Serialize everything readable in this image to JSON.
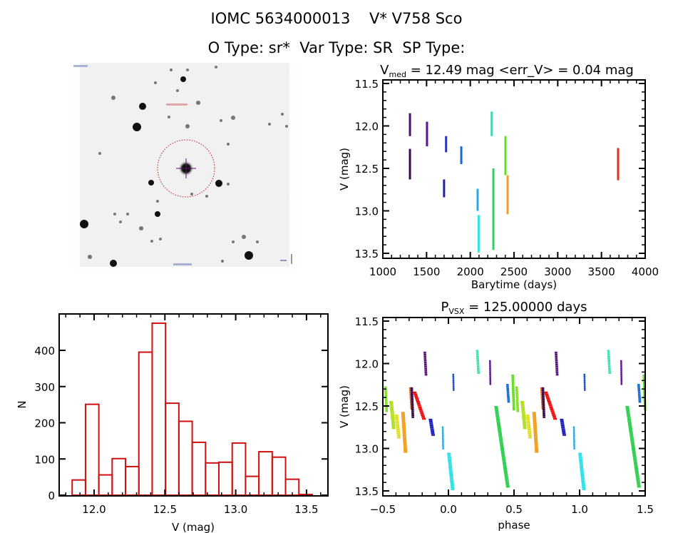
{
  "header": {
    "title_line1": "IOMC 5634000013    V* V758 Sco",
    "title_line2": "O Type: sr*  Var Type: SR  SP Type:"
  },
  "finder_chart": {
    "description": "Grayscale sky image centered on target star with dashed red circle and crosshair",
    "circle_color": "#c8141e",
    "crosshair_color": "#5a1a6a"
  },
  "chart_data": [
    {
      "id": "light-curve",
      "type": "scatter",
      "title": "V_med = 12.49 mag <err_V> = 0.04 mag",
      "title_main": "V",
      "title_sub": "med",
      "title_rest": " = 12.49 mag <err_V> = 0.04 mag",
      "xlabel": "Barytime (days)",
      "ylabel": "V (mag)",
      "xlim": [
        1000,
        4000
      ],
      "ylim": [
        13.55,
        11.5
      ],
      "y_inverted": true,
      "xticks": [
        1000,
        1500,
        2000,
        2500,
        3000,
        3500,
        4000
      ],
      "xtick_labels": [
        "1000",
        "1500",
        "2000",
        "2500",
        "3000",
        "3500",
        "4000"
      ],
      "yticks": [
        11.5,
        12.0,
        12.5,
        13.0,
        13.5
      ],
      "ytick_labels": [
        "11.5",
        "12.0",
        "12.5",
        "13.0",
        "13.5"
      ],
      "segments": [
        {
          "t": 1310,
          "vmin": 11.85,
          "vmax": 12.12,
          "color": "#4b0f6b"
        },
        {
          "t": 1310,
          "vmin": 12.27,
          "vmax": 12.63,
          "color": "#3a0a4e"
        },
        {
          "t": 1505,
          "vmin": 11.95,
          "vmax": 12.24,
          "color": "#5a1490"
        },
        {
          "t": 1723,
          "vmin": 12.12,
          "vmax": 12.31,
          "color": "#2a35b8"
        },
        {
          "t": 1700,
          "vmin": 12.63,
          "vmax": 12.84,
          "color": "#2020b0"
        },
        {
          "t": 1897,
          "vmin": 12.24,
          "vmax": 12.45,
          "color": "#1a6ad0"
        },
        {
          "t": 2084,
          "vmin": 12.74,
          "vmax": 13.0,
          "color": "#2aa8e0"
        },
        {
          "t": 2095,
          "vmin": 13.05,
          "vmax": 13.49,
          "color": "#30e0e8"
        },
        {
          "t": 2245,
          "vmin": 11.83,
          "vmax": 12.12,
          "color": "#40d8b0"
        },
        {
          "t": 2264,
          "vmin": 12.5,
          "vmax": 13.46,
          "color": "#30d060"
        },
        {
          "t": 2402,
          "vmin": 12.12,
          "vmax": 12.58,
          "color": "#60e020"
        },
        {
          "t": 2427,
          "vmin": 12.58,
          "vmax": 13.04,
          "color": "#f0a020"
        },
        {
          "t": 3690,
          "vmin": 12.26,
          "vmax": 12.64,
          "color": "#e03020"
        }
      ]
    },
    {
      "id": "histogram",
      "type": "bar",
      "title": "",
      "xlabel": "V (mag)",
      "ylabel": "N",
      "xlim": [
        11.75,
        13.65
      ],
      "ylim": [
        0,
        490
      ],
      "xticks": [
        12.0,
        12.5,
        13.0,
        13.5
      ],
      "xtick_labels": [
        "12.0",
        "12.5",
        "13.0",
        "13.5"
      ],
      "yticks": [
        0,
        100,
        200,
        300,
        400
      ],
      "ytick_labels": [
        "0",
        "100",
        "200",
        "300",
        "400"
      ],
      "bin_start": 11.845,
      "bin_width": 0.0942,
      "values": [
        42,
        251,
        56,
        101,
        79,
        395,
        475,
        254,
        204,
        146,
        89,
        91,
        144,
        52,
        120,
        105,
        44,
        2
      ],
      "color": "#d01010"
    },
    {
      "id": "phase-plot",
      "type": "scatter",
      "title": "P_vsx = 125.00000 days",
      "title_main": "P",
      "title_sub": "VSX",
      "title_rest": " = 125.00000 days",
      "xlabel": "phase",
      "ylabel": "V (mag)",
      "xlim": [
        -0.5,
        1.5
      ],
      "ylim": [
        13.55,
        11.5
      ],
      "y_inverted": true,
      "xticks": [
        -0.5,
        0.0,
        0.5,
        1.0,
        1.5
      ],
      "xtick_labels": [
        "−0.5",
        "0.0",
        "0.5",
        "1.0",
        "1.5"
      ],
      "yticks": [
        11.5,
        12.0,
        12.5,
        13.0,
        13.5
      ],
      "ytick_labels": [
        "11.5",
        "12.0",
        "12.5",
        "13.0",
        "13.5"
      ],
      "period_days": 125.0,
      "clusters": [
        {
          "p0": -0.49,
          "p1": -0.47,
          "vmin": 12.27,
          "vmax": 12.55,
          "color": "#80e020"
        },
        {
          "p0": -0.45,
          "p1": -0.42,
          "vmin": 12.44,
          "vmax": 12.75,
          "color": "#b0e020"
        },
        {
          "p0": -0.41,
          "p1": -0.38,
          "vmin": 12.6,
          "vmax": 12.86,
          "color": "#e0e020"
        },
        {
          "p0": -0.36,
          "p1": -0.33,
          "vmin": 12.57,
          "vmax": 13.03,
          "color": "#f0a020"
        },
        {
          "p0": -0.3,
          "p1": -0.28,
          "vmin": 12.28,
          "vmax": 12.52,
          "color": "#e07020"
        },
        {
          "p0": -0.29,
          "p1": -0.27,
          "vmin": 12.28,
          "vmax": 12.62,
          "color": "#3a0a4e"
        },
        {
          "p0": -0.27,
          "p1": -0.19,
          "vmin": 12.33,
          "vmax": 12.64,
          "color": "#f01010"
        },
        {
          "p0": -0.19,
          "p1": -0.17,
          "vmin": 11.86,
          "vmax": 12.12,
          "color": "#5a1480"
        },
        {
          "p0": -0.15,
          "p1": -0.12,
          "vmin": 12.65,
          "vmax": 12.83,
          "color": "#2020c0"
        },
        {
          "p0": -0.05,
          "p1": -0.04,
          "vmin": 12.74,
          "vmax": 12.99,
          "color": "#2aa8e0"
        },
        {
          "p0": -0.01,
          "p1": 0.03,
          "vmin": 13.05,
          "vmax": 13.47,
          "color": "#30e0e8"
        },
        {
          "p0": 0.03,
          "p1": 0.04,
          "vmin": 12.12,
          "vmax": 12.3,
          "color": "#1a50c8"
        },
        {
          "p0": 0.21,
          "p1": 0.23,
          "vmin": 11.84,
          "vmax": 12.1,
          "color": "#40e0b0"
        },
        {
          "p0": 0.31,
          "p1": 0.32,
          "vmin": 11.96,
          "vmax": 12.23,
          "color": "#5a1490"
        },
        {
          "p0": 0.35,
          "p1": 0.45,
          "vmin": 12.5,
          "vmax": 13.44,
          "color": "#30d050"
        },
        {
          "p0": 0.44,
          "p1": 0.46,
          "vmin": 12.24,
          "vmax": 12.44,
          "color": "#1a70d0"
        },
        {
          "p0": 0.48,
          "p1": 0.5,
          "vmin": 12.13,
          "vmax": 12.53,
          "color": "#60e020"
        }
      ]
    }
  ]
}
